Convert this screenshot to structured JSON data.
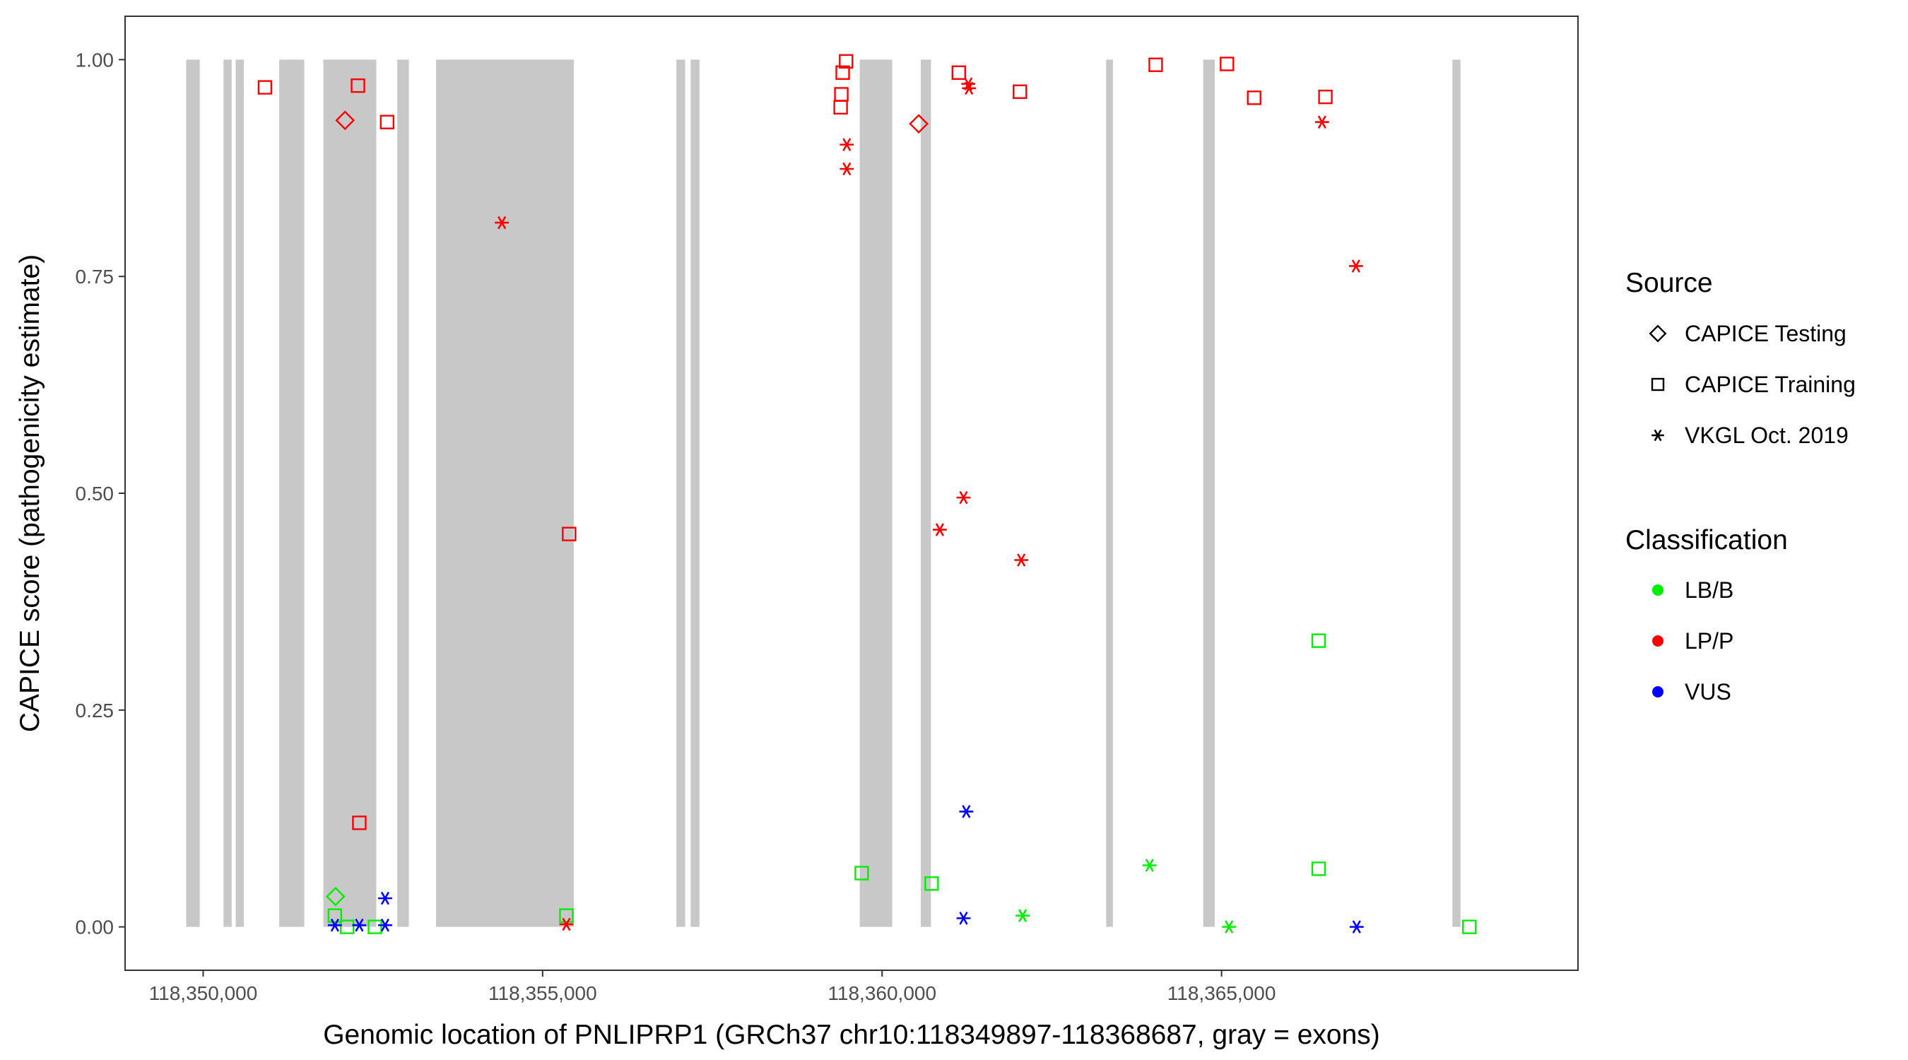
{
  "chart_data": {
    "type": "scatter",
    "title": "",
    "xlabel": "Genomic location of PNLIPRP1 (GRCh37 chr10:118349897-118368687, gray = exons)",
    "ylabel": "CAPICE score (pathogenicity estimate)",
    "xlim": [
      118348850,
      118370250
    ],
    "ylim": [
      -0.05,
      1.05
    ],
    "x_ticks": [
      118350000,
      118355000,
      118360000,
      118365000
    ],
    "x_tick_labels": [
      "118,350,000",
      "118,355,000",
      "118,360,000",
      "118,365,000"
    ],
    "y_ticks": [
      0,
      0.25,
      0.5,
      0.75,
      1
    ],
    "y_tick_labels": [
      "0.00",
      "0.25",
      "0.50",
      "0.75",
      "1.00"
    ],
    "grid": false,
    "exons_shaded": [
      [
        118349750,
        118349950
      ],
      [
        118350300,
        118350420
      ],
      [
        118350480,
        118350600
      ],
      [
        118351120,
        118351490
      ],
      [
        118351770,
        118352550
      ],
      [
        118352860,
        118353030
      ],
      [
        118353430,
        118355460
      ],
      [
        118356970,
        118357100
      ],
      [
        118357180,
        118357310
      ],
      [
        118359670,
        118360150
      ],
      [
        118360570,
        118360720
      ],
      [
        118363300,
        118363400
      ],
      [
        118364730,
        118364900
      ],
      [
        118368400,
        118368520
      ]
    ],
    "legend": {
      "placement": "right",
      "source_title": "Source",
      "source_entries": [
        {
          "label": "CAPICE Testing",
          "shape": "diamond"
        },
        {
          "label": "CAPICE Training",
          "shape": "square"
        },
        {
          "label": "VKGL Oct. 2019",
          "shape": "asterisk"
        }
      ],
      "class_title": "Classification",
      "class_entries": [
        {
          "label": "LB/B",
          "color": "#00ee00"
        },
        {
          "label": "LP/P",
          "color": "#ff0000"
        },
        {
          "label": "VUS",
          "color": "#0000ff"
        }
      ]
    },
    "series": [
      {
        "name": "LB/B",
        "color": "#00ee00",
        "points": [
          {
            "x": 118351950,
            "y": 0.035,
            "shape": "diamond"
          },
          {
            "x": 118351940,
            "y": 0.013,
            "shape": "square"
          },
          {
            "x": 118352120,
            "y": 0.0,
            "shape": "square"
          },
          {
            "x": 118352530,
            "y": 0.0,
            "shape": "square"
          },
          {
            "x": 118355350,
            "y": 0.013,
            "shape": "square"
          },
          {
            "x": 118359700,
            "y": 0.062,
            "shape": "square"
          },
          {
            "x": 118360730,
            "y": 0.05,
            "shape": "square"
          },
          {
            "x": 118362070,
            "y": 0.013,
            "shape": "asterisk"
          },
          {
            "x": 118363940,
            "y": 0.071,
            "shape": "asterisk"
          },
          {
            "x": 118365110,
            "y": 0.0,
            "shape": "asterisk"
          },
          {
            "x": 118366430,
            "y": 0.33,
            "shape": "square"
          },
          {
            "x": 118366430,
            "y": 0.067,
            "shape": "square"
          },
          {
            "x": 118368650,
            "y": 0.0,
            "shape": "square"
          }
        ]
      },
      {
        "name": "LP/P",
        "color": "#ff0000",
        "points": [
          {
            "x": 118350910,
            "y": 0.968,
            "shape": "square"
          },
          {
            "x": 118352090,
            "y": 0.93,
            "shape": "diamond"
          },
          {
            "x": 118352280,
            "y": 0.97,
            "shape": "square"
          },
          {
            "x": 118352710,
            "y": 0.928,
            "shape": "square"
          },
          {
            "x": 118352300,
            "y": 0.12,
            "shape": "square"
          },
          {
            "x": 118354400,
            "y": 0.812,
            "shape": "asterisk"
          },
          {
            "x": 118355390,
            "y": 0.453,
            "shape": "square"
          },
          {
            "x": 118355350,
            "y": 0.003,
            "shape": "asterisk"
          },
          {
            "x": 118359470,
            "y": 0.998,
            "shape": "square"
          },
          {
            "x": 118359420,
            "y": 0.985,
            "shape": "square"
          },
          {
            "x": 118359400,
            "y": 0.96,
            "shape": "square"
          },
          {
            "x": 118359390,
            "y": 0.945,
            "shape": "square"
          },
          {
            "x": 118359480,
            "y": 0.902,
            "shape": "asterisk"
          },
          {
            "x": 118359480,
            "y": 0.874,
            "shape": "asterisk"
          },
          {
            "x": 118360540,
            "y": 0.926,
            "shape": "diamond"
          },
          {
            "x": 118360850,
            "y": 0.458,
            "shape": "asterisk"
          },
          {
            "x": 118361130,
            "y": 0.985,
            "shape": "square"
          },
          {
            "x": 118361270,
            "y": 0.972,
            "shape": "asterisk"
          },
          {
            "x": 118361280,
            "y": 0.967,
            "shape": "asterisk"
          },
          {
            "x": 118361200,
            "y": 0.495,
            "shape": "asterisk"
          },
          {
            "x": 118362030,
            "y": 0.963,
            "shape": "square"
          },
          {
            "x": 118362050,
            "y": 0.423,
            "shape": "asterisk"
          },
          {
            "x": 118364030,
            "y": 0.994,
            "shape": "square"
          },
          {
            "x": 118365080,
            "y": 0.995,
            "shape": "square"
          },
          {
            "x": 118365480,
            "y": 0.956,
            "shape": "square"
          },
          {
            "x": 118366530,
            "y": 0.957,
            "shape": "square"
          },
          {
            "x": 118366480,
            "y": 0.928,
            "shape": "asterisk"
          },
          {
            "x": 118366980,
            "y": 0.762,
            "shape": "asterisk"
          }
        ]
      },
      {
        "name": "VUS",
        "color": "#0000ff",
        "points": [
          {
            "x": 118351940,
            "y": 0.002,
            "shape": "asterisk"
          },
          {
            "x": 118352300,
            "y": 0.002,
            "shape": "asterisk"
          },
          {
            "x": 118352680,
            "y": 0.033,
            "shape": "asterisk"
          },
          {
            "x": 118352680,
            "y": 0.002,
            "shape": "asterisk"
          },
          {
            "x": 118361240,
            "y": 0.133,
            "shape": "asterisk"
          },
          {
            "x": 118361200,
            "y": 0.01,
            "shape": "asterisk"
          },
          {
            "x": 118366990,
            "y": 0.0,
            "shape": "asterisk"
          }
        ]
      }
    ]
  }
}
